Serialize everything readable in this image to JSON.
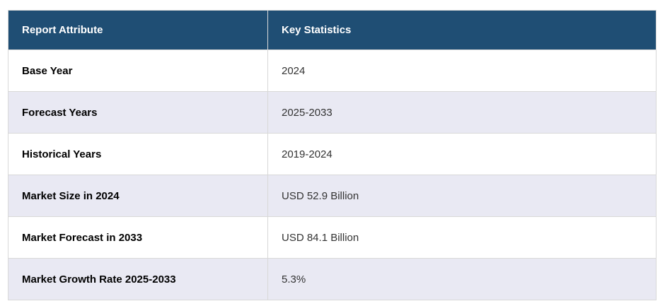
{
  "colors": {
    "header_bg": "#1f4e74",
    "header_text": "#ffffff",
    "alt_row_bg": "#e9e9f3",
    "row_bg": "#ffffff",
    "border": "#d8d8d8",
    "label_text": "#000000",
    "value_text": "#333333"
  },
  "table": {
    "columns": [
      {
        "label": "Report Attribute"
      },
      {
        "label": "Key Statistics"
      }
    ],
    "rows": [
      {
        "attribute": "Base Year",
        "value": "2024"
      },
      {
        "attribute": "Forecast Years",
        "value": "2025-2033"
      },
      {
        "attribute": "Historical Years",
        "value": "2019-2024"
      },
      {
        "attribute": "Market Size in 2024",
        "value": "USD 52.9 Billion"
      },
      {
        "attribute": "Market Forecast in 2033",
        "value": "USD 84.1 Billion"
      },
      {
        "attribute": "Market Growth Rate 2025-2033",
        "value": "5.3%"
      }
    ]
  }
}
